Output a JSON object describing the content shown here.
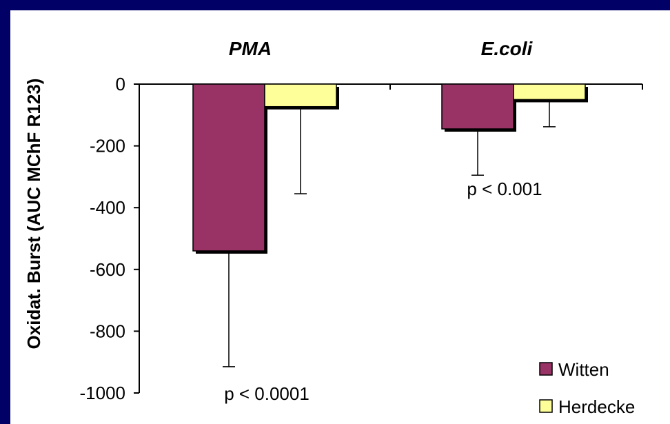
{
  "colors": {
    "background": "#000066",
    "panel": "#ffffff",
    "witten": "#993366",
    "herdecke": "#ffff99",
    "shadow": "#000000"
  },
  "chart_data": {
    "type": "bar",
    "categories": [
      "PMA",
      "E.coli"
    ],
    "series": [
      {
        "name": "Witten",
        "values": [
          -540,
          -145
        ],
        "error_low": [
          -915,
          -295
        ]
      },
      {
        "name": "Herdecke",
        "values": [
          -73,
          -50
        ],
        "error_low": [
          -355,
          -138
        ]
      }
    ],
    "annotations": [
      "p < 0.0001",
      "p < 0.001"
    ],
    "title": "",
    "xlabel": "",
    "ylabel": "Oxidat. Burst (AUC MChF R123)",
    "ylim": [
      -1000,
      0
    ],
    "yticks": [
      0,
      -200,
      -400,
      -600,
      -800,
      -1000
    ],
    "legend_position": "bottom-right",
    "grid": false
  }
}
